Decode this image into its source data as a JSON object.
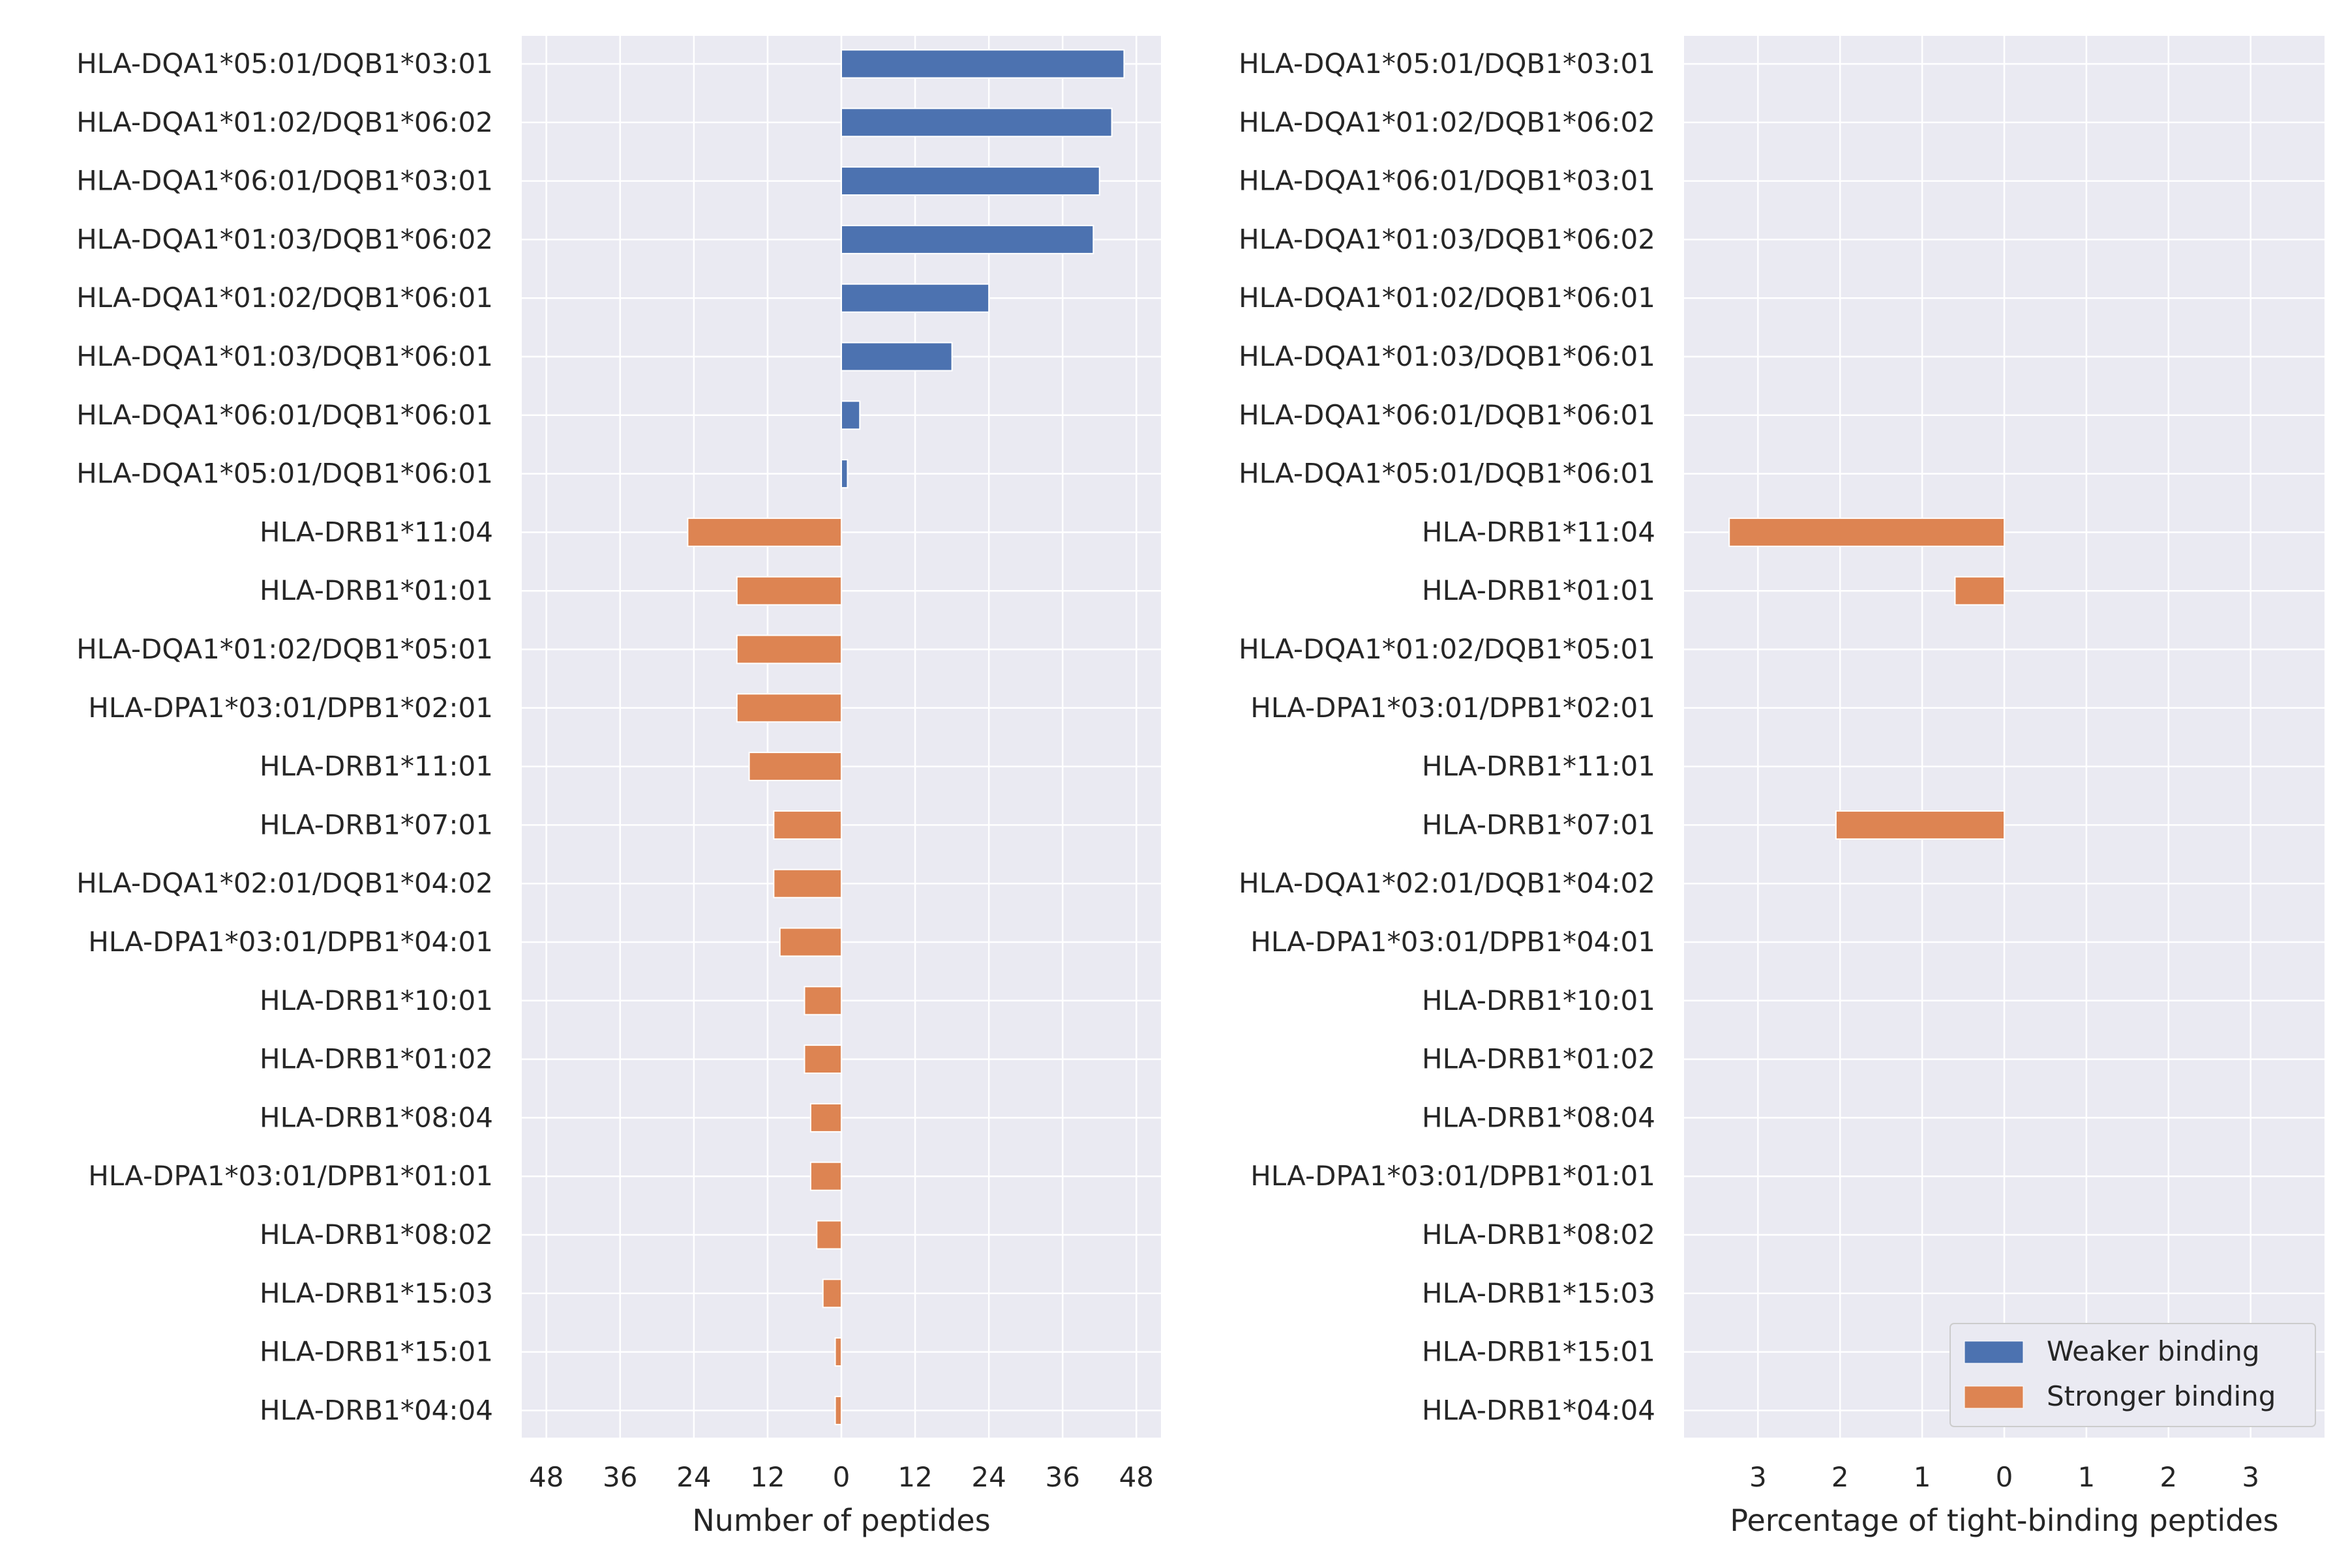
{
  "chart_data": [
    {
      "type": "bar",
      "orientation": "horizontal",
      "xlabel": "Number of peptides",
      "ylabel": "",
      "xlim": [
        -52,
        52
      ],
      "x_ticks": [
        -48,
        -36,
        -24,
        -12,
        0,
        12,
        24,
        36,
        48
      ],
      "x_tick_labels": [
        "48",
        "36",
        "24",
        "12",
        "0",
        "12",
        "24",
        "36",
        "48"
      ],
      "categories": [
        "HLA-DQA1*05:01/DQB1*03:01",
        "HLA-DQA1*01:02/DQB1*06:02",
        "HLA-DQA1*06:01/DQB1*03:01",
        "HLA-DQA1*01:03/DQB1*06:02",
        "HLA-DQA1*01:02/DQB1*06:01",
        "HLA-DQA1*01:03/DQB1*06:01",
        "HLA-DQA1*06:01/DQB1*06:01",
        "HLA-DQA1*05:01/DQB1*06:01",
        "HLA-DRB1*11:04",
        "HLA-DRB1*01:01",
        "HLA-DQA1*01:02/DQB1*05:01",
        "HLA-DPA1*03:01/DPB1*02:01",
        "HLA-DRB1*11:01",
        "HLA-DRB1*07:01",
        "HLA-DQA1*02:01/DQB1*04:02",
        "HLA-DPA1*03:01/DPB1*04:01",
        "HLA-DRB1*10:01",
        "HLA-DRB1*01:02",
        "HLA-DRB1*08:04",
        "HLA-DPA1*03:01/DPB1*01:01",
        "HLA-DRB1*08:02",
        "HLA-DRB1*15:03",
        "HLA-DRB1*15:01",
        "HLA-DRB1*04:04"
      ],
      "series": [
        {
          "name": "Weaker binding",
          "color": "#4c72b0",
          "values": [
            46,
            44,
            42,
            41,
            24,
            18,
            3,
            1,
            0,
            0,
            0,
            0,
            0,
            0,
            0,
            0,
            0,
            0,
            0,
            0,
            0,
            0,
            0,
            0
          ]
        },
        {
          "name": "Stronger binding",
          "color": "#dd8452",
          "values": [
            0,
            0,
            0,
            0,
            0,
            0,
            0,
            0,
            -25,
            -17,
            -17,
            -17,
            -15,
            -11,
            -11,
            -10,
            -6,
            -6,
            -5,
            -5,
            -4,
            -3,
            -1,
            -1
          ]
        }
      ],
      "grid": true,
      "background": "#eaeaf2"
    },
    {
      "type": "bar",
      "orientation": "horizontal",
      "xlabel": "Percentage of tight-binding peptides",
      "ylabel": "",
      "xlim": [
        -3.9,
        3.9
      ],
      "x_ticks": [
        -3,
        -2,
        -1,
        0,
        1,
        2,
        3
      ],
      "x_tick_labels": [
        "3",
        "2",
        "1",
        "0",
        "1",
        "2",
        "3"
      ],
      "categories": [
        "HLA-DQA1*05:01/DQB1*03:01",
        "HLA-DQA1*01:02/DQB1*06:02",
        "HLA-DQA1*06:01/DQB1*03:01",
        "HLA-DQA1*01:03/DQB1*06:02",
        "HLA-DQA1*01:02/DQB1*06:01",
        "HLA-DQA1*01:03/DQB1*06:01",
        "HLA-DQA1*06:01/DQB1*06:01",
        "HLA-DQA1*05:01/DQB1*06:01",
        "HLA-DRB1*11:04",
        "HLA-DRB1*01:01",
        "HLA-DQA1*01:02/DQB1*05:01",
        "HLA-DPA1*03:01/DPB1*02:01",
        "HLA-DRB1*11:01",
        "HLA-DRB1*07:01",
        "HLA-DQA1*02:01/DQB1*04:02",
        "HLA-DPA1*03:01/DPB1*04:01",
        "HLA-DRB1*10:01",
        "HLA-DRB1*01:02",
        "HLA-DRB1*08:04",
        "HLA-DPA1*03:01/DPB1*01:01",
        "HLA-DRB1*08:02",
        "HLA-DRB1*15:03",
        "HLA-DRB1*15:01",
        "HLA-DRB1*04:04"
      ],
      "series": [
        {
          "name": "Weaker binding",
          "color": "#4c72b0",
          "values": [
            0,
            0,
            0,
            0,
            0,
            0,
            0,
            0,
            0,
            0,
            0,
            0,
            0,
            0,
            0,
            0,
            0,
            0,
            0,
            0,
            0,
            0,
            0,
            0
          ]
        },
        {
          "name": "Stronger binding",
          "color": "#dd8452",
          "values": [
            0,
            0,
            0,
            0,
            0,
            0,
            0,
            0,
            -3.35,
            -0.6,
            0,
            0,
            0,
            -2.05,
            0,
            0,
            0,
            0,
            0,
            0,
            0,
            0,
            0,
            0
          ]
        }
      ],
      "grid": true,
      "background": "#eaeaf2",
      "legend": {
        "position": "lower-right",
        "entries": [
          "Weaker binding",
          "Stronger binding"
        ]
      }
    }
  ]
}
